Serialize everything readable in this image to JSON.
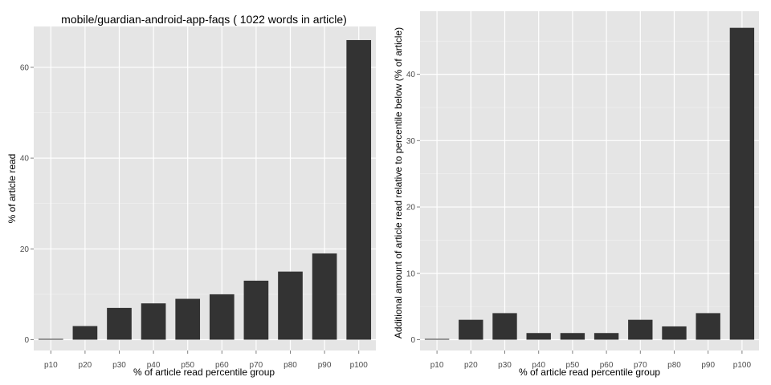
{
  "chart_data": [
    {
      "type": "bar",
      "title": "mobile/guardian-android-app-faqs ( 1022 words in article)",
      "xlabel": "% of article read percentile group",
      "ylabel": "% of article read",
      "categories": [
        "p10",
        "p20",
        "p30",
        "p40",
        "p50",
        "p60",
        "p70",
        "p80",
        "p90",
        "p100"
      ],
      "values": [
        0,
        3,
        7,
        8,
        9,
        10,
        13,
        15,
        19,
        66
      ],
      "ylim": [
        0,
        69
      ],
      "yticks": [
        0,
        20,
        40,
        60
      ],
      "grid": true,
      "color": "#333333"
    },
    {
      "type": "bar",
      "title": "",
      "xlabel": "% of article read percentile group",
      "ylabel": "Additional amount of article read relative to percentile below (% of article)",
      "categories": [
        "p10",
        "p20",
        "p30",
        "p40",
        "p50",
        "p60",
        "p70",
        "p80",
        "p90",
        "p100"
      ],
      "values": [
        0,
        3,
        4,
        1,
        1,
        1,
        3,
        2,
        4,
        47
      ],
      "ylim": [
        0,
        49.5
      ],
      "yticks": [
        0,
        10,
        20,
        30,
        40
      ],
      "grid": true,
      "color": "#333333"
    }
  ]
}
